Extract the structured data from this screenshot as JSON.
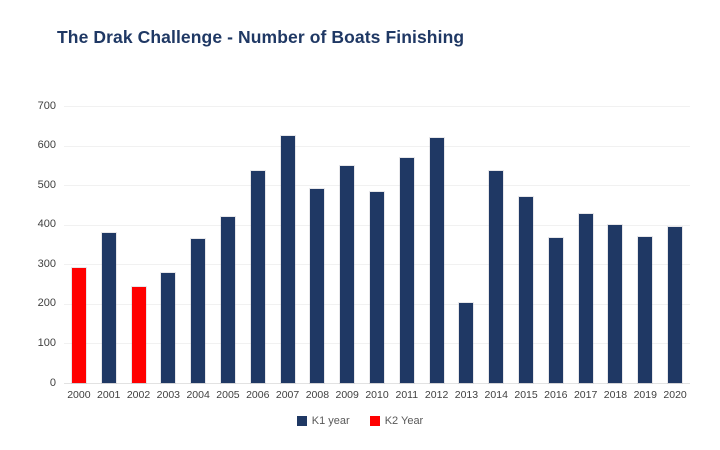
{
  "chart_data": {
    "type": "bar",
    "title": "The Drak Challenge - Number of Boats Finishing",
    "categories": [
      "2000",
      "2001",
      "2002",
      "2003",
      "2004",
      "2005",
      "2006",
      "2007",
      "2008",
      "2009",
      "2010",
      "2011",
      "2012",
      "2013",
      "2014",
      "2015",
      "2016",
      "2017",
      "2018",
      "2019",
      "2020"
    ],
    "series": [
      {
        "name": "K1 year",
        "color": "#1F3864",
        "values": [
          null,
          378,
          null,
          278,
          365,
          420,
          537,
          625,
          491,
          548,
          482,
          568,
          619,
          202,
          536,
          471,
          366,
          427,
          400,
          369,
          394
        ]
      },
      {
        "name": "K2 Year",
        "color": "#FF0000",
        "values": [
          290,
          null,
          242,
          null,
          null,
          null,
          null,
          null,
          null,
          null,
          null,
          null,
          null,
          null,
          null,
          null,
          null,
          null,
          null,
          null,
          null
        ]
      }
    ],
    "xlabel": "",
    "ylabel": "",
    "ylim": [
      0,
      700
    ],
    "ytick_interval": 100,
    "grid": "horizontal",
    "legend_position": "bottom",
    "colors": {
      "title": "#1F3864",
      "axis_text": "#404040",
      "legend_text": "#595959",
      "gridline": "#F1F1F1"
    }
  }
}
